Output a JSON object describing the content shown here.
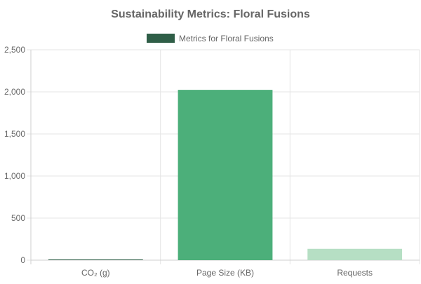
{
  "chart_data": {
    "type": "bar",
    "title": "Sustainability Metrics: Floral Fusions",
    "legend": {
      "label": "Metrics for Floral Fusions",
      "color": "#2f5e47",
      "position": "top-center"
    },
    "categories": [
      "CO₂ (g)",
      "Page Size (KB)",
      "Requests"
    ],
    "series": [
      {
        "name": "Metrics for Floral Fusions",
        "values": [
          5,
          2024,
          135
        ],
        "colors": [
          "#2f5e47",
          "#4caf7a",
          "#b6dfc4"
        ]
      }
    ],
    "ylim": [
      0,
      2500
    ],
    "yticks": [
      0,
      500,
      1000,
      1500,
      2000,
      2500
    ],
    "ytick_labels": [
      "0",
      "500",
      "1,000",
      "1,500",
      "2,000",
      "2,500"
    ],
    "grid": true,
    "xlabel": "",
    "ylabel": ""
  }
}
